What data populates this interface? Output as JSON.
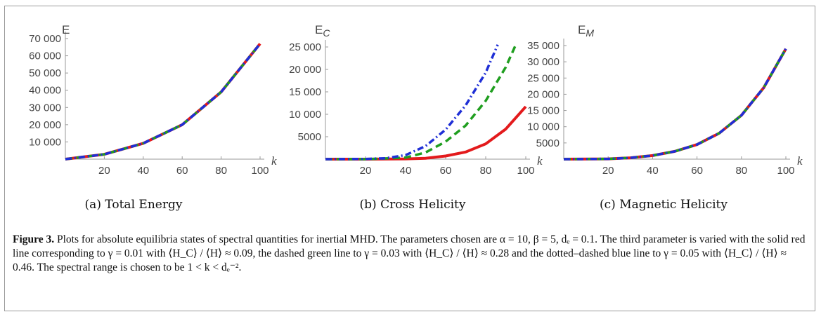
{
  "colors": {
    "red": "#e31a1c",
    "green": "#1f9e1f",
    "blue": "#1f2fd6",
    "axis": "#999999"
  },
  "chart_data": [
    {
      "type": "line",
      "ylabel": "E",
      "xlabel": "k",
      "subcaption": "(a) Total Energy",
      "xlim": [
        0,
        100
      ],
      "ylim": [
        0,
        70000
      ],
      "xticks": [
        "20",
        "40",
        "60",
        "80",
        "100"
      ],
      "yticks": [
        "10 000",
        "20 000",
        "30 000",
        "40 000",
        "50 000",
        "60 000",
        "70 000"
      ],
      "series": [
        {
          "style": "solid-red",
          "x": [
            0,
            20,
            40,
            60,
            80,
            100
          ],
          "y": [
            0,
            2800,
            9200,
            20000,
            39000,
            67000
          ]
        },
        {
          "style": "dashed-green",
          "x": [
            0,
            20,
            40,
            60,
            80,
            100
          ],
          "y": [
            0,
            2800,
            9200,
            20000,
            39000,
            67000
          ]
        },
        {
          "style": "dotdash-blue",
          "x": [
            0,
            20,
            40,
            60,
            80,
            100
          ],
          "y": [
            0,
            2800,
            9200,
            20000,
            39000,
            67000
          ]
        }
      ]
    },
    {
      "type": "line",
      "ylabel": "E_C",
      "xlabel": "k",
      "subcaption": "(b) Cross Helicity",
      "xlim": [
        0,
        100
      ],
      "ylim": [
        0,
        25000
      ],
      "xticks": [
        "20",
        "40",
        "60",
        "80",
        "100"
      ],
      "yticks": [
        "5000",
        "10 000",
        "15 000",
        "20 000",
        "25 000"
      ],
      "series": [
        {
          "style": "solid-red",
          "x": [
            0,
            20,
            40,
            50,
            60,
            70,
            80,
            90,
            100
          ],
          "y": [
            0,
            0,
            60,
            200,
            700,
            1600,
            3400,
            6700,
            11700
          ]
        },
        {
          "style": "dashed-green",
          "x": [
            0,
            20,
            40,
            50,
            60,
            70,
            80,
            90,
            95
          ],
          "y": [
            0,
            0,
            350,
            1500,
            3900,
            7500,
            13000,
            20500,
            25500
          ]
        },
        {
          "style": "dotdash-blue",
          "x": [
            0,
            20,
            30,
            40,
            50,
            60,
            70,
            80,
            86
          ],
          "y": [
            0,
            40,
            200,
            900,
            2900,
            6600,
            12000,
            19300,
            25500
          ]
        }
      ]
    },
    {
      "type": "line",
      "ylabel": "E_M",
      "xlabel": "k",
      "subcaption": "(c) Magnetic Helicity",
      "xlim": [
        0,
        100
      ],
      "ylim": [
        0,
        35000
      ],
      "xticks": [
        "20",
        "40",
        "60",
        "80",
        "100"
      ],
      "yticks": [
        "5000",
        "10 000",
        "15 000",
        "20 000",
        "25 000",
        "30 000",
        "35 000"
      ],
      "series": [
        {
          "style": "solid-red",
          "x": [
            0,
            20,
            30,
            40,
            50,
            60,
            70,
            80,
            90,
            100
          ],
          "y": [
            0,
            80,
            400,
            1100,
            2400,
            4500,
            8000,
            13500,
            22000,
            34000
          ]
        },
        {
          "style": "dashed-green",
          "x": [
            0,
            20,
            30,
            40,
            50,
            60,
            70,
            80,
            90,
            100
          ],
          "y": [
            0,
            80,
            400,
            1100,
            2400,
            4500,
            8000,
            13500,
            22000,
            34000
          ]
        },
        {
          "style": "dotdash-blue",
          "x": [
            0,
            20,
            30,
            40,
            50,
            60,
            70,
            80,
            90,
            100
          ],
          "y": [
            0,
            80,
            400,
            1100,
            2400,
            4500,
            8000,
            13500,
            22000,
            34000
          ]
        }
      ]
    }
  ],
  "caption": {
    "label": "Figure 3.",
    "text": " Plots for absolute equilibria states of spectral quantities for inertial MHD. The parameters chosen are α = 10, β = 5, dₑ = 0.1. The third parameter is varied with the solid red line corresponding to γ = 0.01 with ⟨H_C⟩ / ⟨H⟩ ≈ 0.09, the dashed green line to γ = 0.03 with ⟨H_C⟩ / ⟨H⟩ ≈ 0.28 and the dotted–dashed blue line to γ = 0.05 with ⟨H_C⟩ / ⟨H⟩ ≈ 0.46. The spectral range is chosen to be 1 < k < dₑ⁻²."
  }
}
